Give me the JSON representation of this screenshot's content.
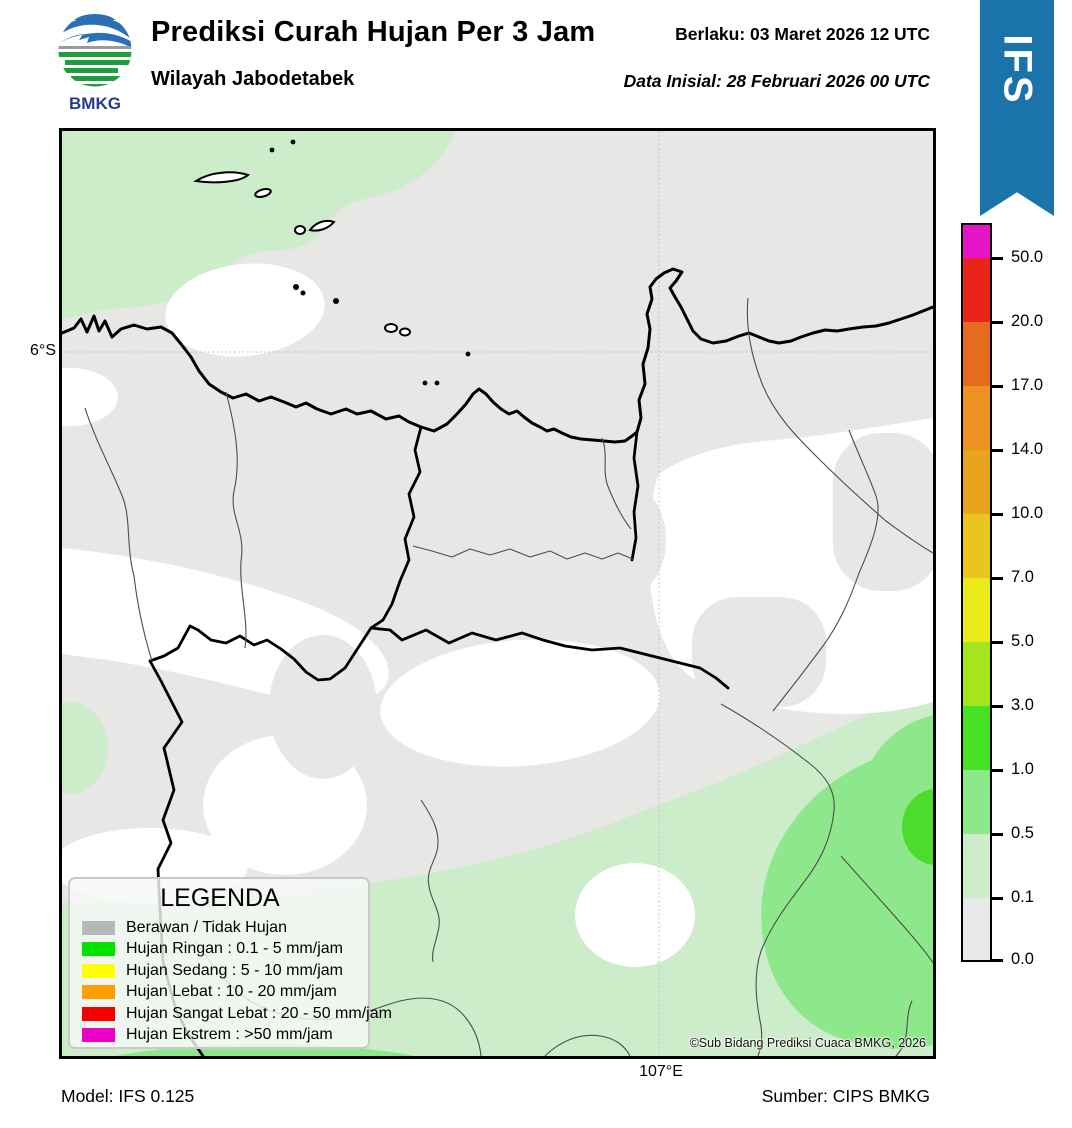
{
  "header": {
    "logo_text": "BMKG",
    "title": "Prediksi Curah Hujan Per 3 Jam",
    "subtitle": "Wilayah Jabodetabek",
    "valid_line": "Berlaku:  03 Maret 2026 12 UTC",
    "init_line": "Data Inisial:  28 Februari 2026 00 UTC",
    "ribbon_label": "IFS",
    "ribbon_color": "#1a73a9"
  },
  "map": {
    "lat_label": "6°S",
    "lon_label": "107°E",
    "copyright": "©Sub Bidang Prediksi Cuaca BMKG, 2026",
    "palette": {
      "base_gray": "#e7e7e6",
      "no_rain_white": "#ffffff",
      "rain_light_green": "#cdecca",
      "rain_medium_green": "#8ce88a",
      "rain_strong_green": "#4cdc2c",
      "coast_line": "#000000",
      "admin_line": "#4d4d4d",
      "grid_line": "#c2c2c2"
    }
  },
  "colorbar": {
    "unit": "mm/jam",
    "segment_colors_top_to_bottom": [
      "#e713c7",
      "#ea2419",
      "#e56b1e",
      "#eb9221",
      "#e7a41d",
      "#e8c51f",
      "#ebeb1c",
      "#a4e51e",
      "#46e226",
      "#8ce88a",
      "#cdecca",
      "#e8e8e8"
    ],
    "tick_labels_top_to_bottom": [
      "50.0",
      "20.0",
      "17.0",
      "14.0",
      "10.0",
      "7.0",
      "5.0",
      "3.0",
      "1.0",
      "0.5",
      "0.1",
      "0.0"
    ]
  },
  "legend": {
    "title": "LEGENDA",
    "items": [
      {
        "color": "#b8b8b8",
        "label": "Berawan / Tidak Hujan"
      },
      {
        "color": "#00e400",
        "label": "Hujan Ringan : 0.1 - 5 mm/jam"
      },
      {
        "color": "#ffff00",
        "label": "Hujan Sedang : 5 - 10 mm/jam"
      },
      {
        "color": "#ff9e00",
        "label": "Hujan Lebat : 10 - 20 mm/jam"
      },
      {
        "color": "#f40000",
        "label": "Hujan Sangat Lebat : 20 - 50 mm/jam"
      },
      {
        "color": "#ee00c8",
        "label": "Hujan Ekstrem : >50 mm/jam"
      }
    ]
  },
  "footer": {
    "model": "Model: IFS 0.125",
    "source": "Sumber: CIPS BMKG"
  }
}
